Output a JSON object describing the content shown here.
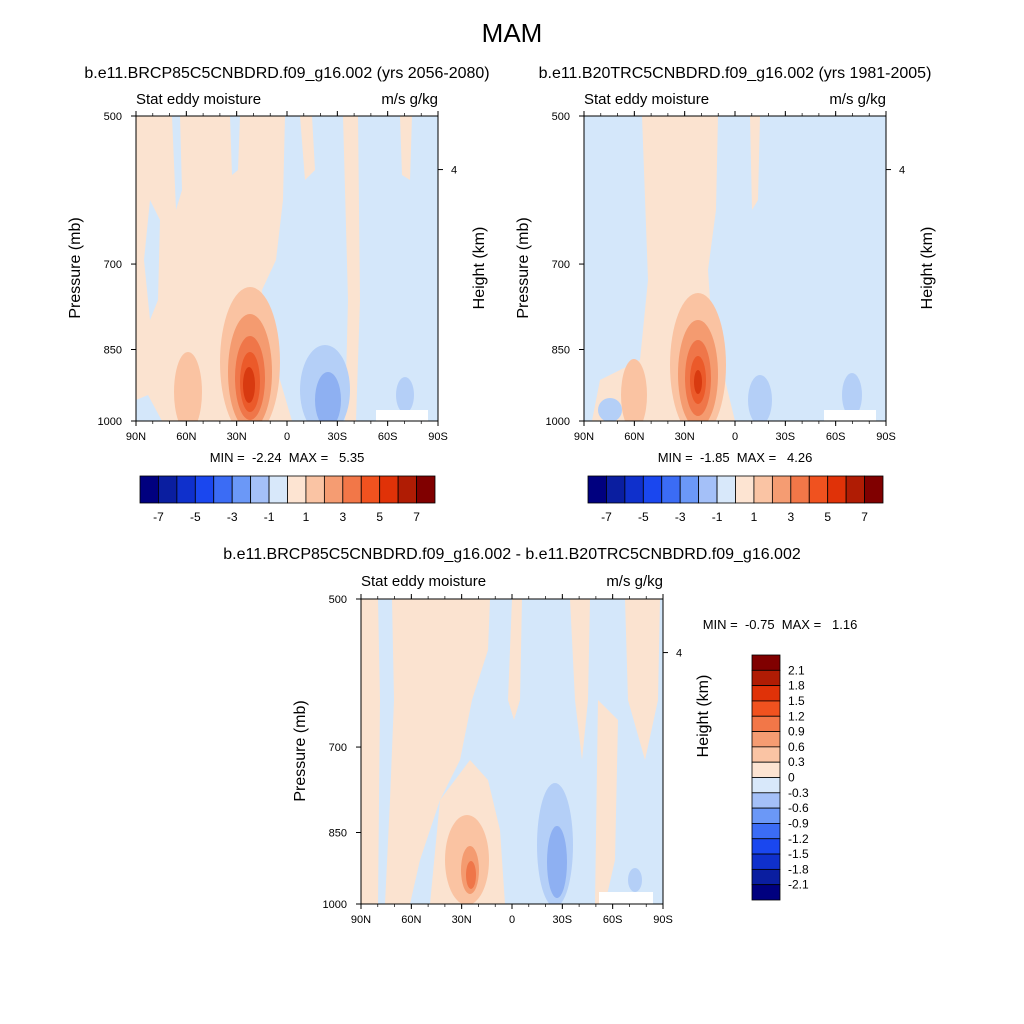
{
  "main_title": "MAM",
  "panels": [
    {
      "title": "b.e11.BRCP85C5CNBDRD.f09_g16.002 (yrs 2056-2080)",
      "left_label": "Stat eddy moisture",
      "right_label": "m/s g/kg",
      "ylabel": "Pressure (mb)",
      "ylabel_right": "Height (km)",
      "stats": "MIN =  -2.24  MAX =   5.35"
    },
    {
      "title": "b.e11.B20TRC5CNBDRD.f09_g16.002 (yrs 1981-2005)",
      "left_label": "Stat eddy moisture",
      "right_label": "m/s g/kg",
      "ylabel": "Pressure (mb)",
      "ylabel_right": "Height (km)",
      "stats": "MIN =  -1.85  MAX =   4.26"
    },
    {
      "title": "b.e11.BRCP85C5CNBDRD.f09_g16.002 - b.e11.B20TRC5CNBDRD.f09_g16.002",
      "left_label": "Stat eddy moisture",
      "right_label": "m/s g/kg",
      "ylabel": "Pressure (mb)",
      "ylabel_right": "Height (km)",
      "stats": "MIN =  -0.75  MAX =   1.16"
    }
  ],
  "chart_data": [
    {
      "type": "heatmap",
      "title": "b.e11.BRCP85C5CNBDRD.f09_g16.002 (yrs 2056-2080)",
      "variable": "Stat eddy moisture",
      "units": "m/s g/kg",
      "xticks": [
        "90N",
        "60N",
        "30N",
        "0",
        "30S",
        "60S",
        "90S"
      ],
      "yticks": [
        500,
        700,
        850,
        1000
      ],
      "ylabel": "Pressure (mb)",
      "y2ticks": [
        4
      ],
      "y2label": "Height (km)",
      "min": -2.24,
      "max": 5.35,
      "features": [
        {
          "lat": 25,
          "p": 930,
          "value": 5.35,
          "sign": "positive"
        },
        {
          "lat": 60,
          "p": 940,
          "value": 1.5,
          "sign": "positive"
        },
        {
          "lat": -25,
          "p": 950,
          "value": -2.24,
          "sign": "negative"
        },
        {
          "lat": -65,
          "p": 960,
          "value": -1.5,
          "sign": "negative"
        }
      ],
      "colorbar_levels": [
        -8,
        -7,
        -6,
        -5,
        -4,
        -3,
        -2,
        -1,
        0,
        1,
        2,
        3,
        4,
        5,
        6,
        7,
        8
      ],
      "colorbar_labels": [
        "-7",
        "-5",
        "-3",
        "-1",
        "1",
        "3",
        "5",
        "7"
      ]
    },
    {
      "type": "heatmap",
      "title": "b.e11.B20TRC5CNBDRD.f09_g16.002 (yrs 1981-2005)",
      "variable": "Stat eddy moisture",
      "units": "m/s g/kg",
      "xticks": [
        "90N",
        "60N",
        "30N",
        "0",
        "30S",
        "60S",
        "90S"
      ],
      "yticks": [
        500,
        700,
        850,
        1000
      ],
      "ylabel": "Pressure (mb)",
      "y2ticks": [
        4
      ],
      "y2label": "Height (km)",
      "min": -1.85,
      "max": 4.26,
      "features": [
        {
          "lat": 27,
          "p": 925,
          "value": 4.26,
          "sign": "positive"
        },
        {
          "lat": 62,
          "p": 945,
          "value": 1.2,
          "sign": "positive"
        },
        {
          "lat": -25,
          "p": 955,
          "value": -1.5,
          "sign": "negative"
        },
        {
          "lat": -70,
          "p": 960,
          "value": -1.85,
          "sign": "negative"
        }
      ],
      "colorbar_levels": [
        -8,
        -7,
        -6,
        -5,
        -4,
        -3,
        -2,
        -1,
        0,
        1,
        2,
        3,
        4,
        5,
        6,
        7,
        8
      ],
      "colorbar_labels": [
        "-7",
        "-5",
        "-3",
        "-1",
        "1",
        "3",
        "5",
        "7"
      ]
    },
    {
      "type": "heatmap",
      "title": "b.e11.BRCP85C5CNBDRD.f09_g16.002 - b.e11.B20TRC5CNBDRD.f09_g16.002",
      "variable": "Stat eddy moisture",
      "units": "m/s g/kg",
      "xticks": [
        "90N",
        "60N",
        "30N",
        "0",
        "30S",
        "60S",
        "90S"
      ],
      "yticks": [
        500,
        700,
        850,
        1000
      ],
      "ylabel": "Pressure (mb)",
      "y2ticks": [
        4
      ],
      "y2label": "Height (km)",
      "min": -0.75,
      "max": 1.16,
      "features": [
        {
          "lat": 27,
          "p": 920,
          "value": 1.16,
          "sign": "positive"
        },
        {
          "lat": -27,
          "p": 930,
          "value": -0.75,
          "sign": "negative"
        }
      ],
      "colorbar_levels": [
        -2.4,
        -2.1,
        -1.8,
        -1.5,
        -1.2,
        -0.9,
        -0.6,
        -0.3,
        0,
        0.3,
        0.6,
        0.9,
        1.2,
        1.5,
        1.8,
        2.1,
        2.4
      ],
      "colorbar_labels": [
        "2.1",
        "1.8",
        "1.5",
        "1.2",
        "0.9",
        "0.6",
        "0.3",
        "0",
        "-0.3",
        "-0.6",
        "-0.9",
        "-1.2",
        "-1.5",
        "-1.8",
        "-2.1"
      ]
    }
  ],
  "colorbar_colors": [
    "#00007f",
    "#0a1ea0",
    "#0f30cc",
    "#1a47ef",
    "#3b6cf5",
    "#6b98f7",
    "#a4c0f8",
    "#d8e8fa",
    "#fde4d2",
    "#fac4a4",
    "#f59c72",
    "#f27748",
    "#f0521f",
    "#e03208",
    "#b01c04",
    "#800000"
  ],
  "colors": {
    "light_blue": "#d4e7fa",
    "blue2": "#b4cff7",
    "blue3": "#8eb0f2",
    "blue4": "#6b8ff0",
    "light_orange": "#fbe3d0",
    "orange2": "#fac3a2",
    "orange3": "#f49b70",
    "orange4": "#ef7649",
    "orange5": "#eb5a2a",
    "orange6": "#d83a10"
  }
}
